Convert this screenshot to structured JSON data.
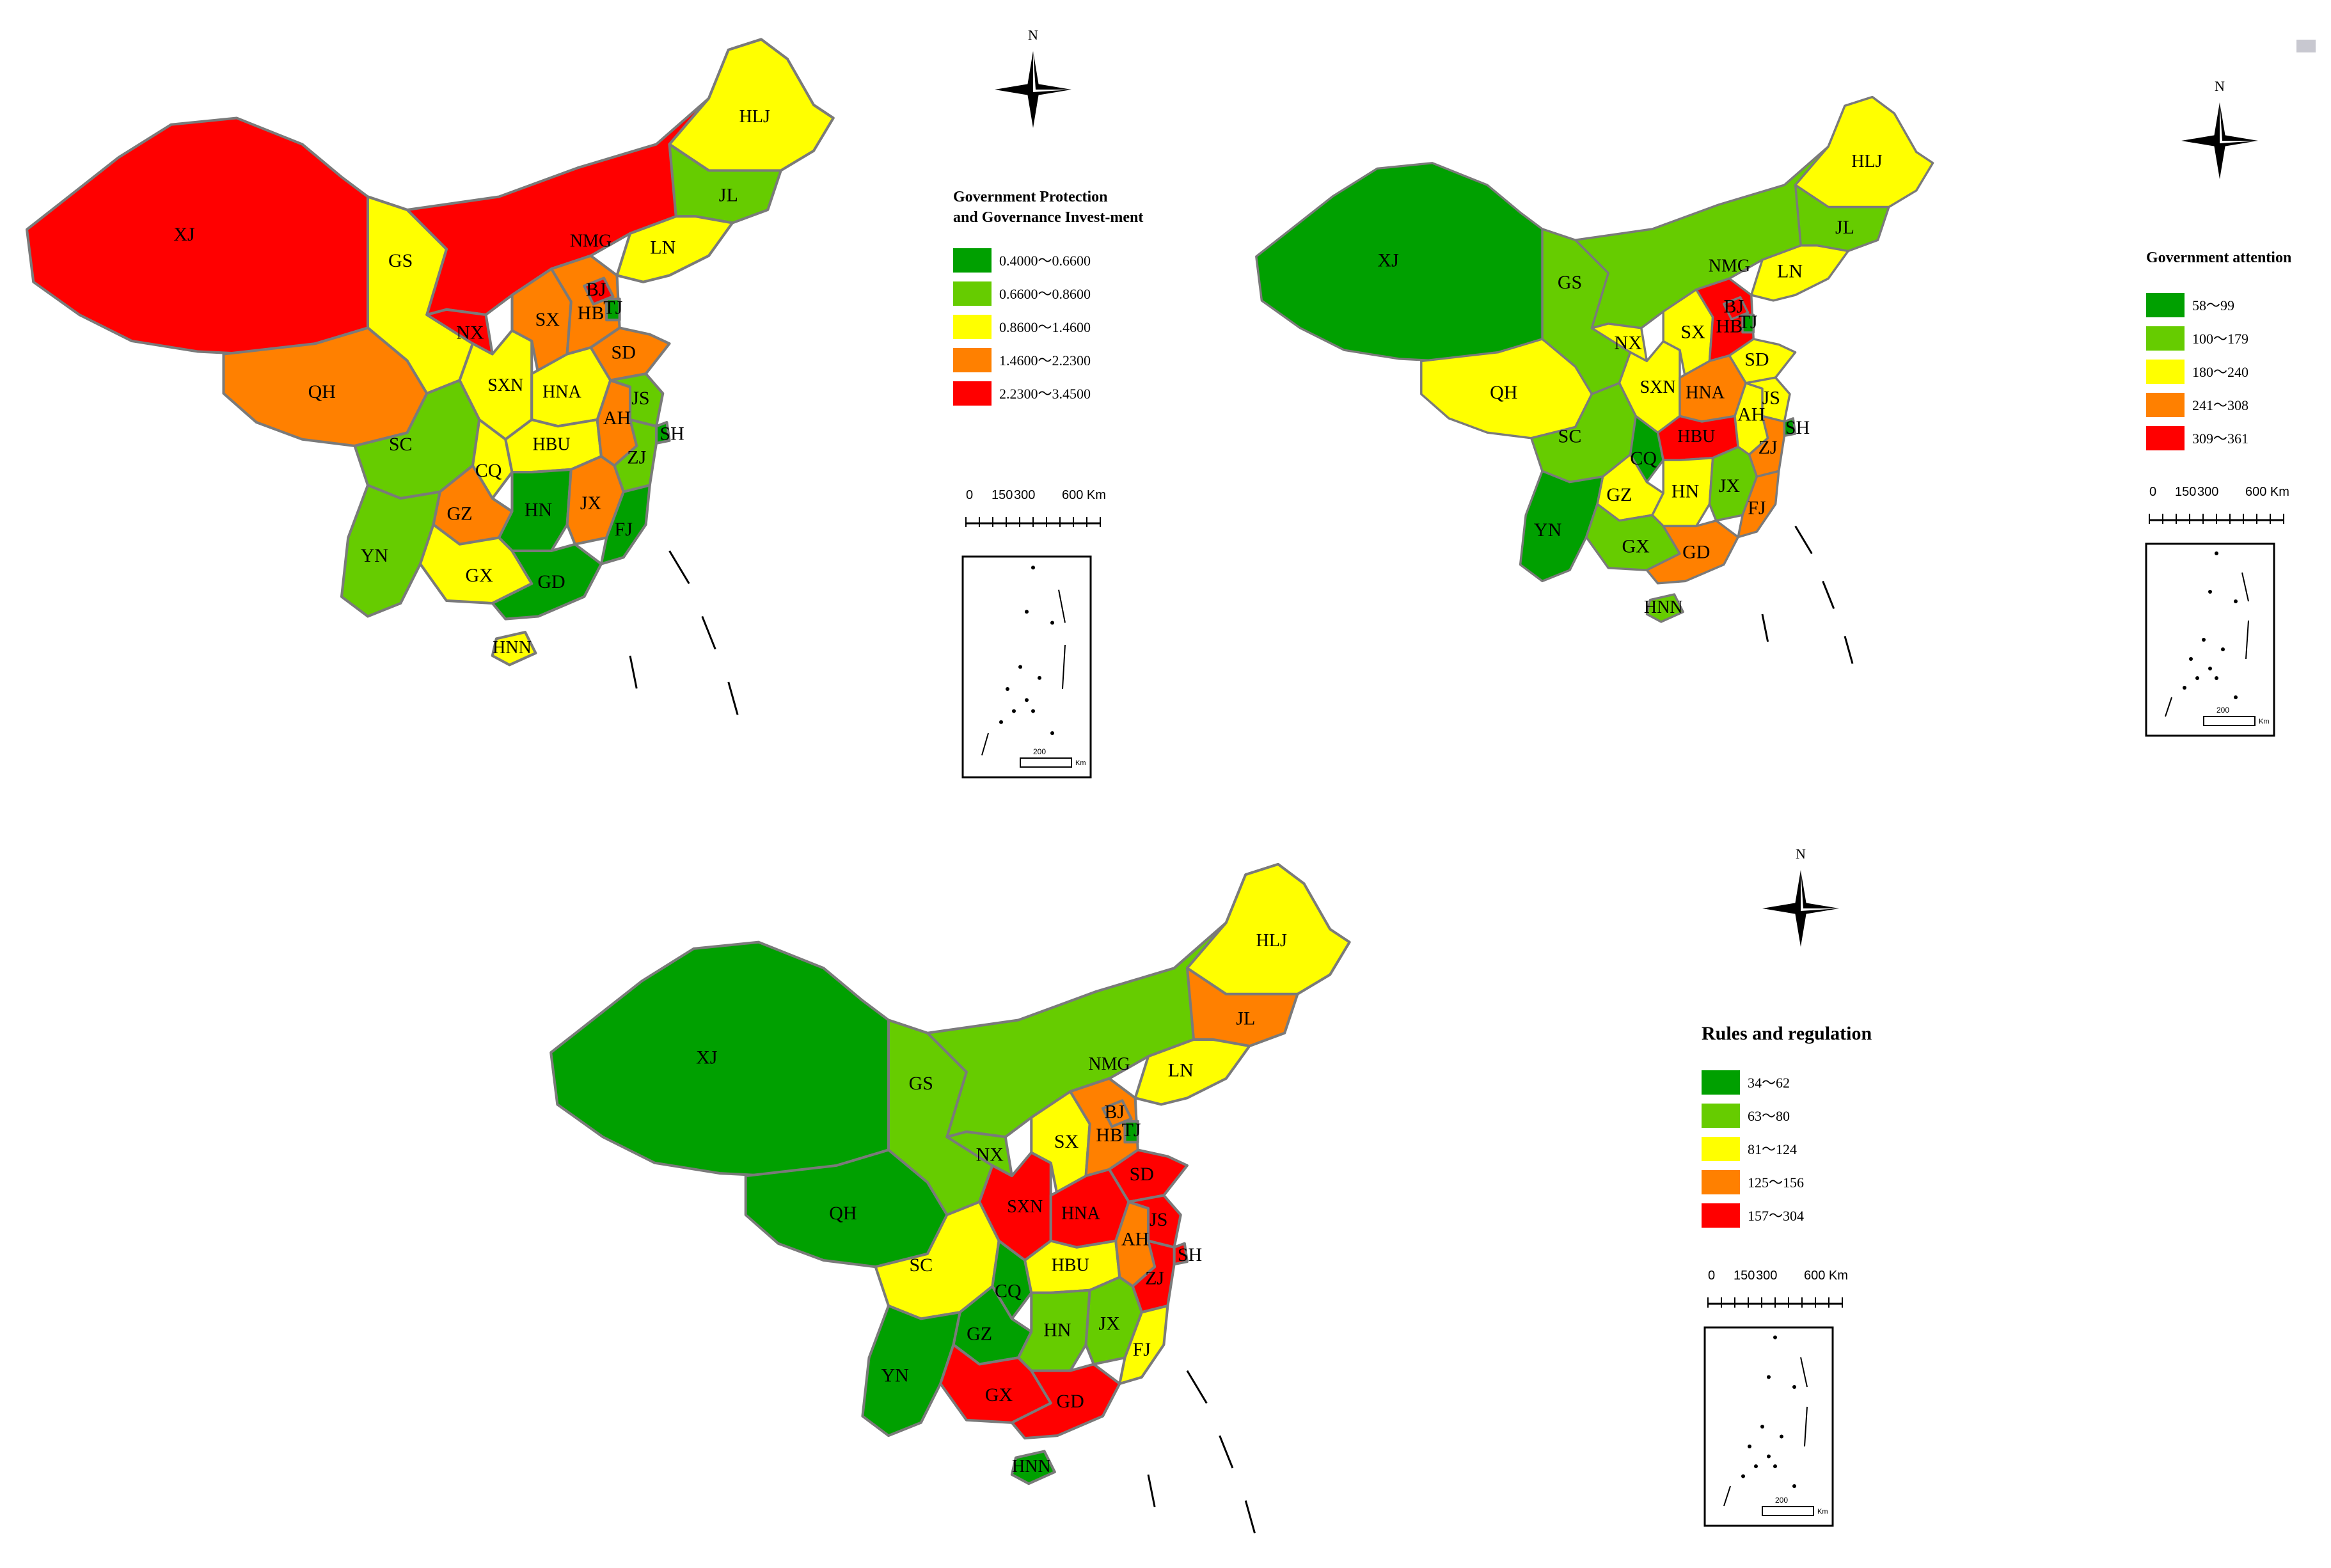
{
  "colors": {
    "dark_green": "#00A000",
    "light_green": "#66CC00",
    "yellow": "#FFFF00",
    "orange": "#FF8000",
    "red": "#FF0000"
  },
  "maps": [
    {
      "legend_title_lines": [
        "Government Protection",
        "and Governance Invest-ment"
      ],
      "classes": [
        "0.4000～0.6600",
        "0.6600～0.8600",
        "0.8600～1.4600",
        "1.4600～2.2300",
        "2.2300～3.4500"
      ],
      "scale_labels": [
        "0",
        "150",
        "300",
        "600 Km"
      ],
      "north": "N",
      "inset_scale": "200",
      "inset_unit": "Km",
      "provinces": {
        "XJ": "red",
        "NMG": "red",
        "GS": "yellow",
        "QH": "orange",
        "NX": "red",
        "SXN": "yellow",
        "SX": "orange",
        "HB": "orange",
        "BJ": "red",
        "TJ": "dark_green",
        "SD": "orange",
        "HNA": "yellow",
        "HLJ": "yellow",
        "JL": "light_green",
        "LN": "yellow",
        "SC": "light_green",
        "CQ": "yellow",
        "HBU": "yellow",
        "AH": "orange",
        "JS": "light_green",
        "SH": "dark_green",
        "ZJ": "light_green",
        "GZ": "orange",
        "HN": "dark_green",
        "JX": "orange",
        "FJ": "dark_green",
        "YN": "light_green",
        "GX": "yellow",
        "GD": "dark_green",
        "HNN": "yellow"
      }
    },
    {
      "legend_title_lines": [
        "Government attention"
      ],
      "classes": [
        "58～99",
        "100～179",
        "180～240",
        "241～308",
        "309～361"
      ],
      "scale_labels": [
        "0",
        "150",
        "300",
        "600 Km"
      ],
      "north": "N",
      "inset_scale": "200",
      "inset_unit": "Km",
      "provinces": {
        "XJ": "dark_green",
        "NMG": "light_green",
        "GS": "light_green",
        "QH": "yellow",
        "NX": "yellow",
        "SXN": "yellow",
        "SX": "yellow",
        "HB": "red",
        "BJ": "red",
        "TJ": "dark_green",
        "SD": "yellow",
        "HNA": "orange",
        "HLJ": "yellow",
        "JL": "light_green",
        "LN": "yellow",
        "SC": "light_green",
        "CQ": "dark_green",
        "HBU": "red",
        "AH": "yellow",
        "JS": "yellow",
        "SH": "dark_green",
        "ZJ": "orange",
        "GZ": "yellow",
        "HN": "yellow",
        "JX": "light_green",
        "FJ": "orange",
        "YN": "dark_green",
        "GX": "light_green",
        "GD": "orange",
        "HNN": "light_green"
      }
    },
    {
      "legend_title_lines": [
        "Rules and regulation"
      ],
      "classes": [
        "34～62",
        "63～80",
        "81～124",
        "125～156",
        "157～304"
      ],
      "scale_labels": [
        "0",
        "150",
        "300",
        "600 Km"
      ],
      "north": "N",
      "inset_scale": "200",
      "inset_unit": "Km",
      "provinces": {
        "XJ": "dark_green",
        "NMG": "light_green",
        "GS": "light_green",
        "QH": "dark_green",
        "NX": "light_green",
        "SXN": "red",
        "SX": "yellow",
        "HB": "orange",
        "BJ": "orange",
        "TJ": "dark_green",
        "SD": "red",
        "HNA": "red",
        "HLJ": "yellow",
        "JL": "orange",
        "LN": "yellow",
        "SC": "yellow",
        "CQ": "dark_green",
        "HBU": "yellow",
        "AH": "orange",
        "JS": "red",
        "SH": "red",
        "ZJ": "red",
        "GZ": "dark_green",
        "HN": "light_green",
        "JX": "light_green",
        "FJ": "yellow",
        "YN": "dark_green",
        "GX": "red",
        "GD": "red",
        "HNN": "dark_green"
      }
    }
  ]
}
